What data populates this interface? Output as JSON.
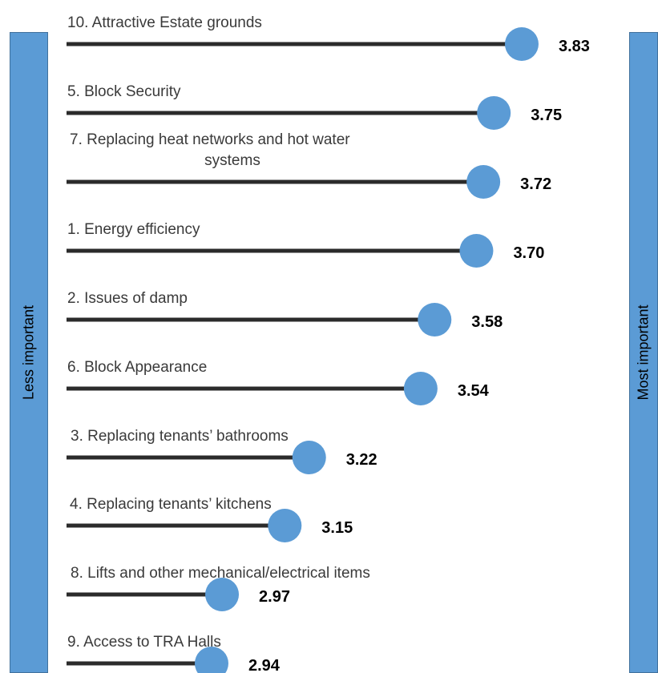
{
  "left_bar_label": "Less important",
  "right_bar_label": "Most important",
  "colors": {
    "bar_fill": "#5b9bd5",
    "line": "#2b2b2b",
    "dot": "#5b9bd5"
  },
  "chart_data": {
    "type": "dot",
    "title": "",
    "xlabel": "",
    "ylabel": "",
    "items": [
      {
        "label": "10. Attractive Estate grounds",
        "value": 3.83,
        "value_text": "3.83"
      },
      {
        "label": "5. Block Security",
        "value": 3.75,
        "value_text": "3.75"
      },
      {
        "label": "7.  Replacing heat networks and hot water systems",
        "label_lines": [
          "7.  Replacing heat networks and hot water",
          "systems"
        ],
        "value": 3.72,
        "value_text": "3.72"
      },
      {
        "label": "1. Energy efficiency",
        "value": 3.7,
        "value_text": "3.70"
      },
      {
        "label": "2. Issues of damp",
        "value": 3.58,
        "value_text": "3.58"
      },
      {
        "label": "6.  Block Appearance",
        "value": 3.54,
        "value_text": "3.54"
      },
      {
        "label": "3. Replacing tenants’ bathrooms",
        "value": 3.22,
        "value_text": "3.22"
      },
      {
        "label": "4. Replacing tenants’ kitchens",
        "value": 3.15,
        "value_text": "3.15"
      },
      {
        "label": "8.  Lifts and other mechanical/electrical items",
        "value": 2.97,
        "value_text": "2.97"
      },
      {
        "label": "9.  Access to TRA Halls",
        "value": 2.94,
        "value_text": "2.94"
      }
    ]
  }
}
